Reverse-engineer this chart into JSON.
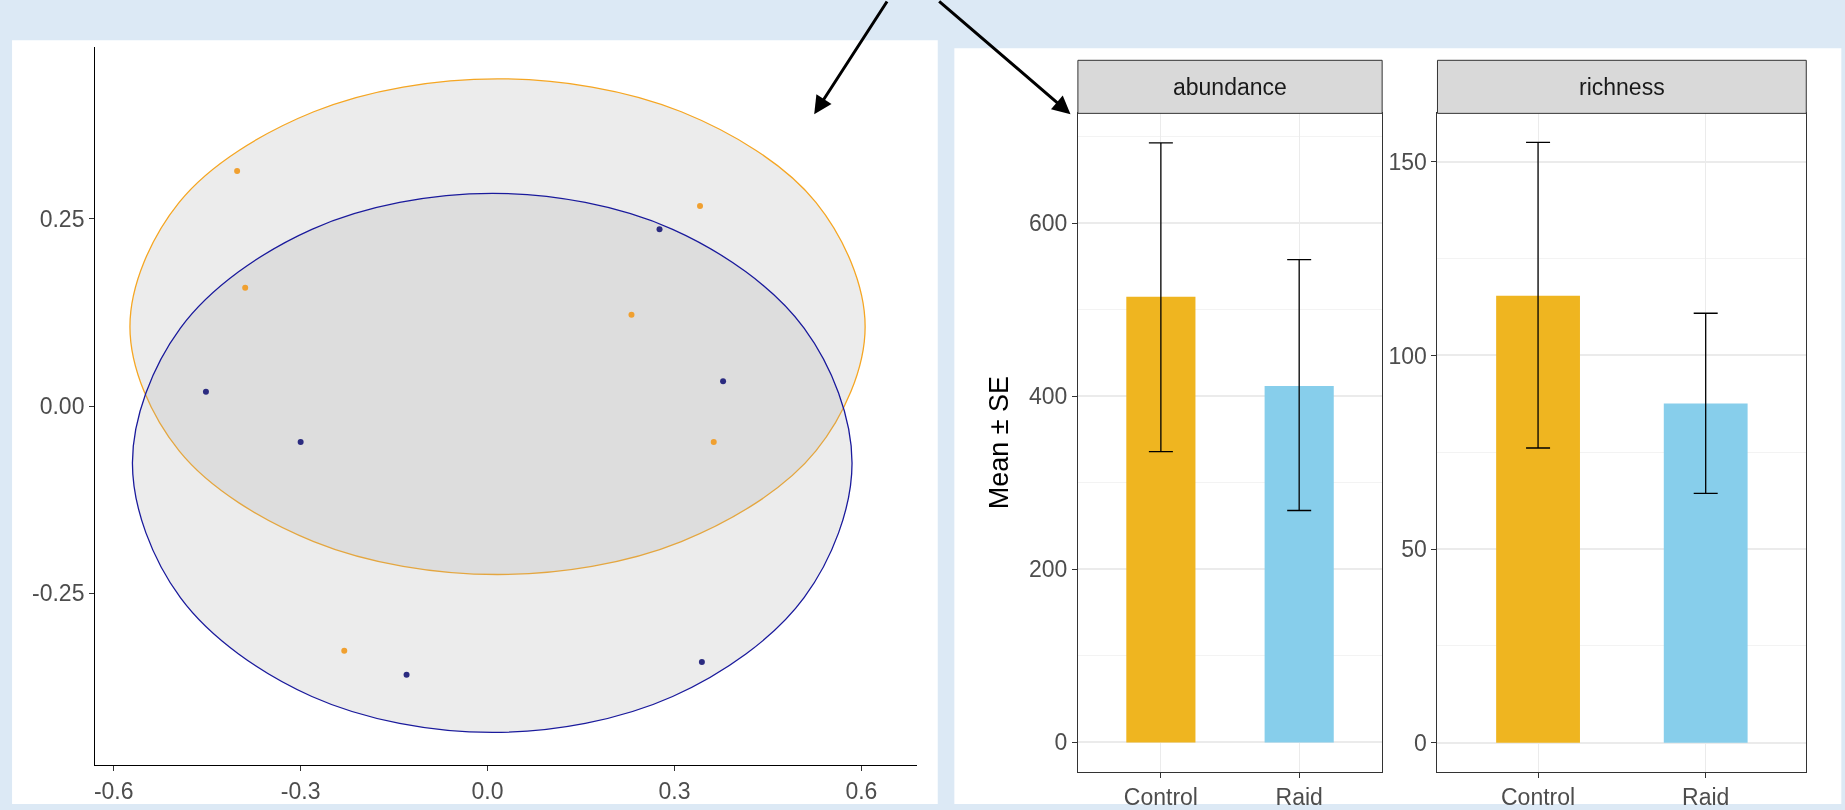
{
  "chart_data": [
    {
      "type": "scatter",
      "xlim": [
        -0.63,
        0.69
      ],
      "ylim": [
        -0.48,
        0.48
      ],
      "xticks": [
        -0.6,
        -0.3,
        {
          "value": 0,
          "label": "0.0"
        },
        0.3,
        0.6
      ],
      "yticks": [
        {
          "value": -0.25,
          "label": "-0.25"
        },
        {
          "value": 0,
          "label": "0.00"
        },
        0.25
      ],
      "grid": false,
      "series": [
        {
          "type": "area",
          "color": "#f5a623",
          "x": [
            0.606,
            0.527,
            0.311,
            0.016,
            -0.279,
            -0.495,
            -0.574,
            -0.495,
            -0.279,
            0.016,
            0.311,
            0.527,
            0.606
          ],
          "values": [
            0.106,
            0.272,
            0.393,
            0.437,
            0.393,
            0.272,
            0.106,
            -0.06,
            -0.181,
            -0.225,
            -0.181,
            -0.06,
            0.106
          ]
        },
        {
          "type": "area",
          "color": "#1a1a9c",
          "x": [
            0.585,
            0.508,
            0.297,
            0.008,
            -0.282,
            -0.493,
            -0.57,
            -0.493,
            -0.282,
            0.008,
            0.297,
            0.508,
            0.585
          ],
          "values": [
            -0.076,
            0.104,
            0.236,
            0.284,
            0.236,
            0.104,
            -0.076,
            -0.256,
            -0.388,
            -0.436,
            -0.388,
            -0.256,
            -0.076
          ]
        },
        {
          "color": "#f0a030",
          "marker": "circle",
          "x": [
            -0.402,
            -0.389,
            0.231,
            0.341,
            0.363,
            -0.23
          ],
          "values": [
            0.314,
            0.158,
            0.122,
            0.267,
            -0.048,
            -0.327
          ]
        },
        {
          "color": "#2b2b80",
          "marker": "circle",
          "x": [
            0.276,
            0.378,
            -0.452,
            -0.3,
            -0.13,
            0.344
          ],
          "values": [
            0.236,
            0.033,
            0.019,
            -0.048,
            -0.359,
            -0.342
          ]
        }
      ]
    },
    {
      "type": "bar",
      "title": "abundance",
      "ylabel": "Mean ± SE",
      "categories": [
        "Control",
        "Raid"
      ],
      "values": [
        515,
        412
      ],
      "colors": [
        "#efb520",
        "#87ceeb"
      ],
      "errors": [
        [
          336,
          693
        ],
        [
          268,
          558
        ]
      ],
      "ylim": [
        -34,
        727
      ],
      "yticks": [
        0,
        200,
        400,
        600
      ],
      "grid": true
    },
    {
      "type": "bar",
      "title": "richness",
      "categories": [
        "Control",
        "Raid"
      ],
      "values": [
        115.4,
        87.6
      ],
      "colors": [
        "#efb520",
        "#87ceeb"
      ],
      "errors": [
        [
          76.1,
          155
        ],
        [
          64.4,
          110.9
        ]
      ],
      "ylim": [
        -7.5,
        162.5
      ],
      "yticks": [
        0,
        50,
        100,
        150
      ],
      "grid": true
    }
  ]
}
